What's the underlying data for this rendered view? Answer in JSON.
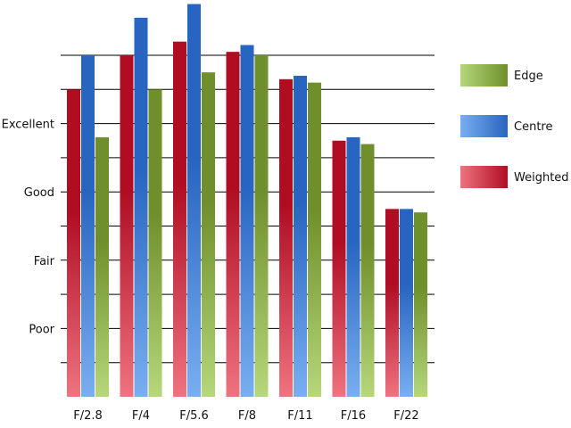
{
  "chart_data": {
    "type": "bar",
    "title": "",
    "xlabel": "",
    "ylabel": "",
    "categories": [
      "F/2.8",
      "F/4",
      "F/5.6",
      "F/8",
      "F/11",
      "F/16",
      "F/22"
    ],
    "series": [
      {
        "name": "Weighted",
        "values": [
          9.0,
          10.0,
          10.4,
          10.1,
          9.3,
          7.5,
          5.5
        ],
        "color_light": "#ef7380",
        "color_dark": "#b00d23"
      },
      {
        "name": "Centre",
        "values": [
          10.0,
          11.1,
          11.5,
          10.3,
          9.4,
          7.6,
          5.5
        ],
        "color_light": "#79aef0",
        "color_dark": "#2865c0"
      },
      {
        "name": "Edge",
        "values": [
          7.6,
          9.0,
          9.5,
          10.0,
          9.2,
          7.4,
          5.4
        ],
        "color_light": "#b6d77a",
        "color_dark": "#6f8f2c"
      }
    ],
    "ylim": [
      0,
      12
    ],
    "y_gridlines": [
      1,
      2,
      3,
      4,
      5,
      6,
      7,
      8,
      9,
      10
    ],
    "y_tick_labels": [
      {
        "value": 2,
        "label": "Poor"
      },
      {
        "value": 4,
        "label": "Fair"
      },
      {
        "value": 6,
        "label": "Good"
      },
      {
        "value": 8,
        "label": "Excellent"
      }
    ],
    "legend": {
      "placement": "right",
      "entries": [
        "Edge",
        "Centre",
        "Weighted"
      ]
    },
    "grid": true
  }
}
